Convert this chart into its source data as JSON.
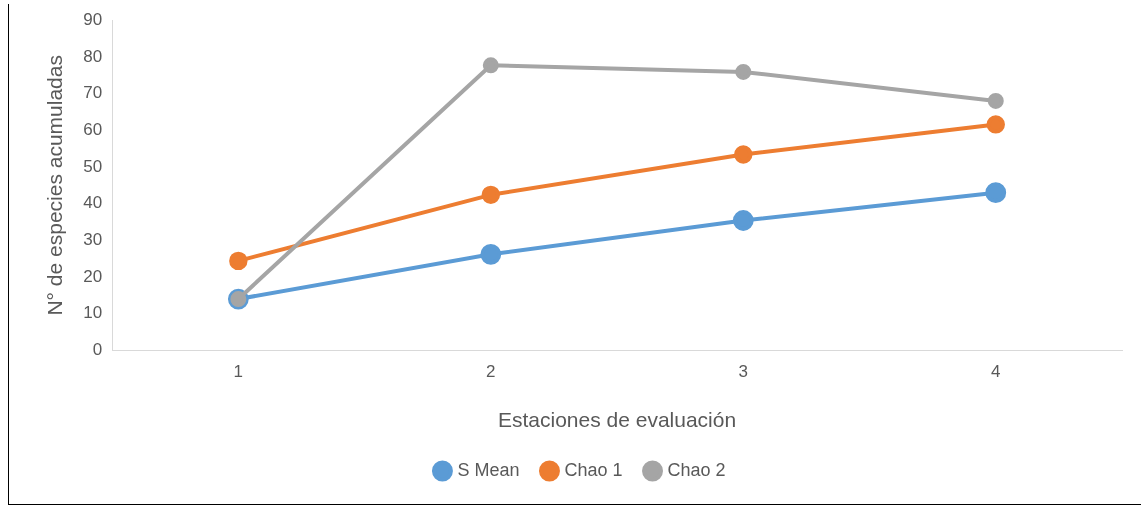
{
  "chart_data": {
    "type": "line",
    "xlabel": "Estaciones de evaluación",
    "ylabel": "N° de especies acumuladas",
    "categories": [
      "1",
      "2",
      "3",
      "4"
    ],
    "series": [
      {
        "name": "S Mean",
        "color": "#5b9bd5",
        "values": [
          14,
          26.2,
          35.4,
          43
        ]
      },
      {
        "name": "Chao 1",
        "color": "#ed7d31",
        "values": [
          24.4,
          42.4,
          53.4,
          61.6
        ]
      },
      {
        "name": "Chao 2",
        "color": "#a5a5a5",
        "values": [
          14,
          77.7,
          75.9,
          68
        ]
      }
    ],
    "ylim": [
      0,
      90
    ],
    "yticks": [
      0,
      10,
      20,
      30,
      40,
      50,
      60,
      70,
      80,
      90
    ],
    "grid": false,
    "legend": "bottom",
    "marker": "circle",
    "line_style": "solid"
  }
}
